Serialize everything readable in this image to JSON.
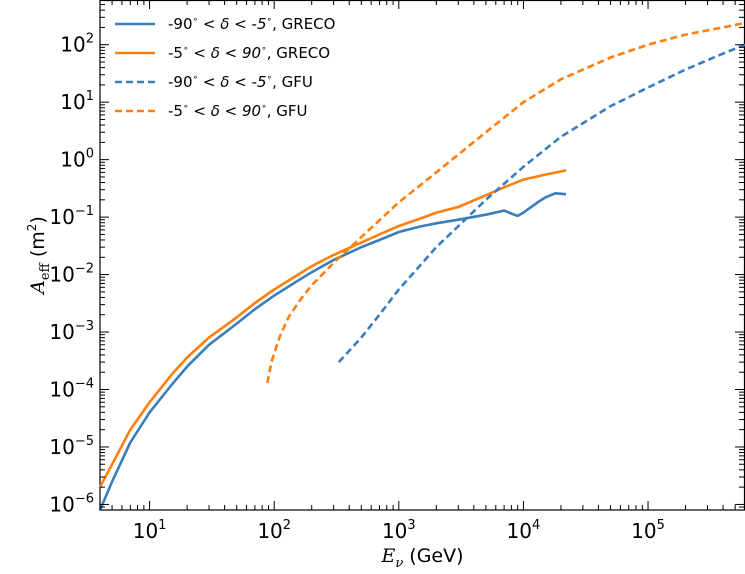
{
  "chart_data": {
    "type": "line",
    "xlabel": "E_ν (GeV)",
    "xlabel_parts": {
      "symbol": "E",
      "sub": "ν",
      "unit": " (GeV)"
    },
    "ylabel": "A_eff (m^2)",
    "ylabel_parts": {
      "symbol": "A",
      "sub": "eff",
      "unit": " (m",
      "unit_sup": "2",
      "unit_close": ")"
    },
    "xscale": "log",
    "yscale": "log",
    "xlim": [
      4,
      600000
    ],
    "ylim": [
      8e-07,
      600
    ],
    "x_tick_labels": [
      {
        "value": 10,
        "base": "10",
        "exp": "1"
      },
      {
        "value": 100,
        "base": "10",
        "exp": "2"
      },
      {
        "value": 1000,
        "base": "10",
        "exp": "3"
      },
      {
        "value": 10000,
        "base": "10",
        "exp": "4"
      },
      {
        "value": 100000,
        "base": "10",
        "exp": "5"
      }
    ],
    "y_tick_labels": [
      {
        "value": 1e-06,
        "base": "10",
        "exp": "−6"
      },
      {
        "value": 1e-05,
        "base": "10",
        "exp": "−5"
      },
      {
        "value": 0.0001,
        "base": "10",
        "exp": "−4"
      },
      {
        "value": 0.001,
        "base": "10",
        "exp": "−3"
      },
      {
        "value": 0.01,
        "base": "10",
        "exp": "−2"
      },
      {
        "value": 0.1,
        "base": "10",
        "exp": "−1"
      },
      {
        "value": 1,
        "base": "10",
        "exp": "0"
      },
      {
        "value": 10,
        "base": "10",
        "exp": "1"
      },
      {
        "value": 100,
        "base": "10",
        "exp": "2"
      }
    ],
    "grid": false,
    "legend_position": "top-left",
    "series": [
      {
        "name": "-90° < δ < -5°, GRECO",
        "color": "#3a7dbd",
        "style": "solid",
        "points": [
          [
            4,
            8e-07
          ],
          [
            5,
            2.5e-06
          ],
          [
            7,
            1.2e-05
          ],
          [
            10,
            4e-05
          ],
          [
            15,
            0.00012
          ],
          [
            20,
            0.00025
          ],
          [
            30,
            0.0006
          ],
          [
            50,
            0.0014
          ],
          [
            70,
            0.0025
          ],
          [
            100,
            0.0043
          ],
          [
            150,
            0.0075
          ],
          [
            200,
            0.011
          ],
          [
            300,
            0.018
          ],
          [
            500,
            0.03
          ],
          [
            700,
            0.04
          ],
          [
            1000,
            0.055
          ],
          [
            1500,
            0.069
          ],
          [
            2000,
            0.078
          ],
          [
            3000,
            0.09
          ],
          [
            5000,
            0.11
          ],
          [
            7000,
            0.13
          ],
          [
            8000,
            0.115
          ],
          [
            9000,
            0.105
          ],
          [
            10000,
            0.12
          ],
          [
            13000,
            0.18
          ],
          [
            15000,
            0.22
          ],
          [
            18000,
            0.26
          ],
          [
            22000,
            0.25
          ]
        ]
      },
      {
        "name": "-5° < δ < 90°, GRECO",
        "color": "#ff7f0e",
        "style": "solid",
        "points": [
          [
            4,
            2e-06
          ],
          [
            5,
            5e-06
          ],
          [
            7,
            2e-05
          ],
          [
            10,
            6e-05
          ],
          [
            15,
            0.00018
          ],
          [
            20,
            0.00036
          ],
          [
            30,
            0.0008
          ],
          [
            50,
            0.0018
          ],
          [
            70,
            0.0032
          ],
          [
            100,
            0.0055
          ],
          [
            150,
            0.0095
          ],
          [
            200,
            0.014
          ],
          [
            300,
            0.022
          ],
          [
            500,
            0.036
          ],
          [
            700,
            0.05
          ],
          [
            1000,
            0.07
          ],
          [
            1500,
            0.095
          ],
          [
            2000,
            0.12
          ],
          [
            3000,
            0.15
          ],
          [
            5000,
            0.24
          ],
          [
            7000,
            0.33
          ],
          [
            10000,
            0.45
          ],
          [
            15000,
            0.55
          ],
          [
            22000,
            0.65
          ]
        ]
      },
      {
        "name": "-90° < δ < -5°, GFU",
        "color": "#3a7dbd",
        "style": "dashed",
        "points": [
          [
            330,
            0.0003
          ],
          [
            500,
            0.0008
          ],
          [
            700,
            0.002
          ],
          [
            1000,
            0.0055
          ],
          [
            2000,
            0.03
          ],
          [
            5000,
            0.2
          ],
          [
            10000,
            0.75
          ],
          [
            20000,
            2.5
          ],
          [
            50000,
            8.5
          ],
          [
            100000,
            18
          ],
          [
            200000,
            37
          ],
          [
            400000,
            70
          ],
          [
            600000,
            100
          ]
        ]
      },
      {
        "name": "-5° < δ < 90°, GFU",
        "color": "#ff7f0e",
        "style": "dashed",
        "points": [
          [
            88,
            0.00013
          ],
          [
            95,
            0.0003
          ],
          [
            110,
            0.0008
          ],
          [
            130,
            0.0018
          ],
          [
            160,
            0.0035
          ],
          [
            200,
            0.0065
          ],
          [
            300,
            0.016
          ],
          [
            500,
            0.045
          ],
          [
            1000,
            0.18
          ],
          [
            2000,
            0.6
          ],
          [
            5000,
            3
          ],
          [
            10000,
            10
          ],
          [
            20000,
            25
          ],
          [
            50000,
            60
          ],
          [
            100000,
            100
          ],
          [
            200000,
            150
          ],
          [
            400000,
            200
          ],
          [
            600000,
            240
          ]
        ]
      }
    ],
    "legend_entries": [
      {
        "pre": "-90",
        "mid": " < δ < -5",
        "post": ", GRECO"
      },
      {
        "pre": "-5",
        "mid": " < δ < 90",
        "post": ", GRECO"
      },
      {
        "pre": "-90",
        "mid": " < δ < -5",
        "post": ", GFU"
      },
      {
        "pre": "-5",
        "mid": " < δ < 90",
        "post": ", GFU"
      }
    ],
    "degree_mark": "∘"
  }
}
